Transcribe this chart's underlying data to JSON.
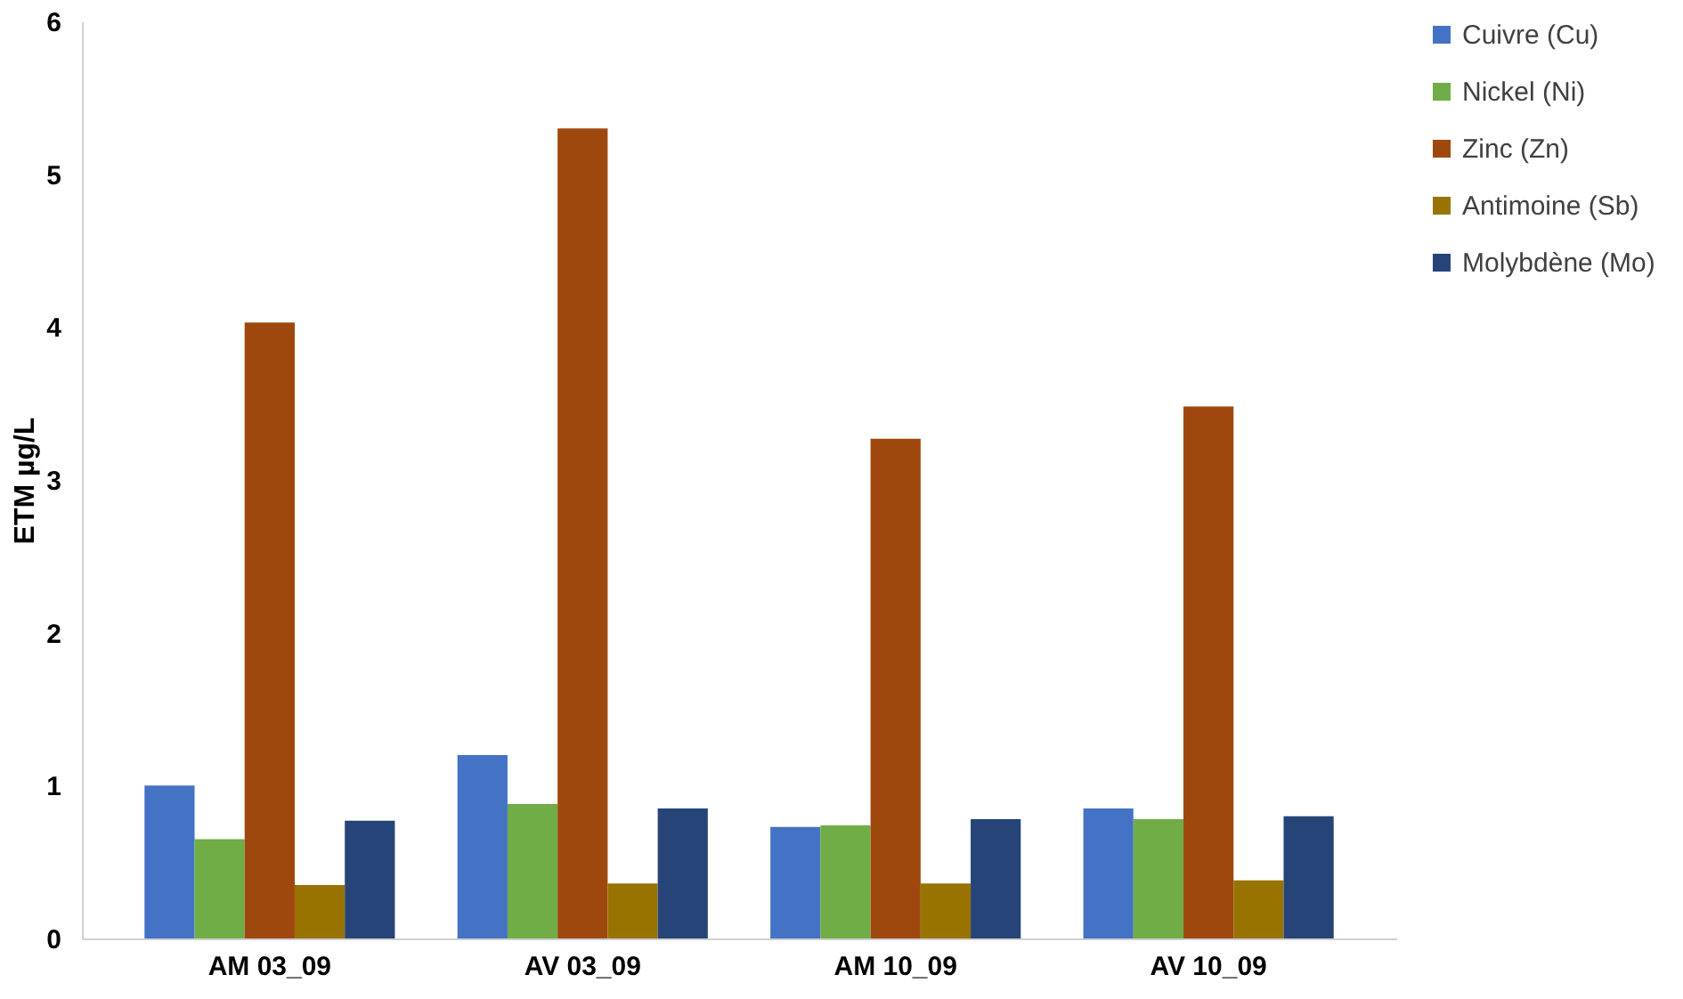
{
  "chart_data": {
    "type": "bar",
    "ylabel": "ETM µg/L",
    "categories": [
      "AM 03_09",
      "AV 03_09",
      "AM 10_09",
      "AV 10_09"
    ],
    "series": [
      {
        "name": "Cuivre (Cu)",
        "color": "#4472c4",
        "values": [
          1.0,
          1.2,
          0.73,
          0.85
        ]
      },
      {
        "name": "Nickel (Ni)",
        "color": "#70ad47",
        "values": [
          0.65,
          0.88,
          0.74,
          0.78
        ]
      },
      {
        "name": "Zinc (Zn)",
        "color": "#9e480e",
        "values": [
          4.03,
          5.3,
          3.27,
          3.48
        ]
      },
      {
        "name": "Antimoine (Sb)",
        "color": "#997300",
        "values": [
          0.35,
          0.36,
          0.36,
          0.38
        ]
      },
      {
        "name": "Molybdène (Mo)",
        "color": "#264478",
        "values": [
          0.77,
          0.85,
          0.78,
          0.8
        ]
      }
    ],
    "ylim": [
      0,
      6
    ],
    "yticks": [
      0,
      1,
      2,
      3,
      4,
      5,
      6
    ],
    "grid": false,
    "legend": "right"
  }
}
